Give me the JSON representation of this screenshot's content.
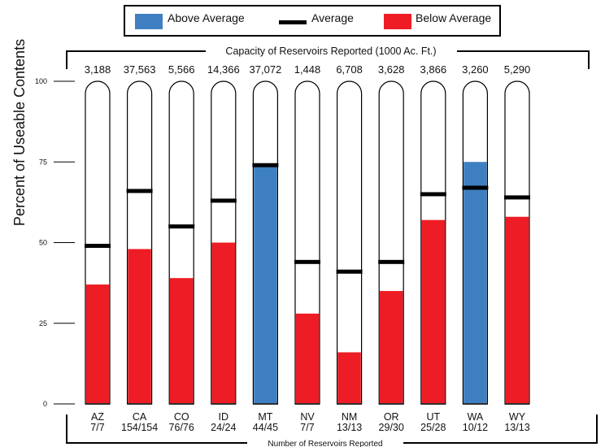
{
  "chart_data": {
    "type": "bar",
    "title": "",
    "ylabel": "Percent of Useable Contents",
    "ylim": [
      0,
      100
    ],
    "yticks": [
      "0",
      "25",
      "50",
      "75",
      "100"
    ],
    "grid": false,
    "legend_position": "top",
    "legend": [
      {
        "key": "above",
        "label": "Above Average",
        "color": "#3e7fc1"
      },
      {
        "key": "avg",
        "label": "Average",
        "color": "#000000"
      },
      {
        "key": "below",
        "label": "Below Average",
        "color": "#ee1c24"
      }
    ],
    "top_bracket_label": "Capacity of Reservoirs Reported (1000 Ac. Ft.)",
    "bottom_bracket_label": "Number of Reservoirs Reported",
    "categories": [
      "AZ",
      "CA",
      "CO",
      "ID",
      "MT",
      "NV",
      "NM",
      "OR",
      "UT",
      "WA",
      "WY"
    ],
    "capacity": [
      "3,188",
      "37,563",
      "5,566",
      "14,366",
      "37,072",
      "1,448",
      "6,708",
      "3,628",
      "3,866",
      "3,260",
      "5,290"
    ],
    "reservoirs_reported": [
      "7/7",
      "154/154",
      "76/76",
      "24/24",
      "44/45",
      "7/7",
      "13/13",
      "29/30",
      "25/28",
      "10/12",
      "13/13"
    ],
    "current": [
      37,
      48,
      39,
      50,
      74,
      28,
      16,
      35,
      57,
      75,
      58
    ],
    "average": [
      49,
      66,
      55,
      63,
      74,
      44,
      41,
      44,
      65,
      67,
      64
    ],
    "status": [
      "below",
      "below",
      "below",
      "below",
      "above",
      "below",
      "below",
      "below",
      "below",
      "above",
      "below"
    ]
  }
}
